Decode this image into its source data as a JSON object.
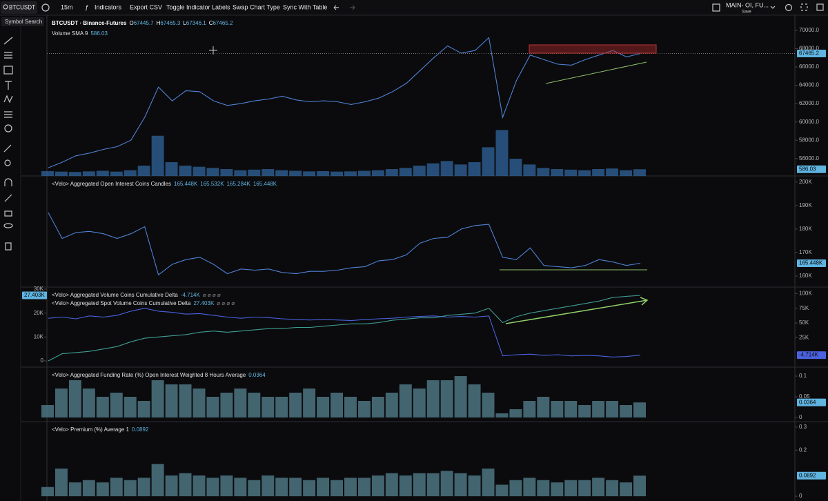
{
  "toolbar": {
    "symbol": "BTCUSDT",
    "interval": "15m",
    "buttons": [
      "Indicators",
      "Export CSV",
      "Toggle Indicator Labels",
      "Swap Chart Type",
      "Sync With Table"
    ],
    "layout": "MAIN- OI, FU...",
    "save": "Save",
    "tooltip": "Symbol Search"
  },
  "chart_data": [
    {
      "type": "line",
      "title": "BTCUSDT · Binance-Futures",
      "ohlc": {
        "labels": [
          "O",
          "H",
          "L",
          "C"
        ],
        "values": [
          67445.7,
          67465.3,
          67346.1,
          67465.2
        ]
      },
      "series": [
        {
          "color": "#4f82d4",
          "values": [
            55000,
            55600,
            56300,
            56600,
            57000,
            57300,
            58000,
            60500,
            63800,
            62300,
            63400,
            63300,
            62300,
            61800,
            62000,
            62300,
            62500,
            62800,
            62400,
            62200,
            62300,
            62200,
            61900,
            62200,
            62600,
            63300,
            64200,
            65600,
            67000,
            68300,
            67500,
            67800,
            69200,
            60500,
            64500,
            67300,
            66800,
            66300,
            66200,
            66800,
            67300,
            67800,
            67100,
            67465.2
          ]
        }
      ],
      "volume": {
        "name": "Volume SMA 9",
        "value": 586.03,
        "color": "#2c5a8c",
        "ylim": [
          0,
          14000
        ],
        "values": [
          420,
          380,
          350,
          400,
          450,
          380,
          500,
          900,
          3500,
          1200,
          900,
          800,
          700,
          600,
          500,
          550,
          600,
          500,
          450,
          400,
          420,
          380,
          400,
          450,
          500,
          600,
          700,
          900,
          1100,
          1300,
          1000,
          1200,
          2500,
          4000,
          1500,
          1000,
          700,
          600,
          550,
          500,
          600,
          650,
          500,
          586
        ]
      },
      "ylim": [
        54100,
        71650
      ],
      "yticks": [
        {
          "value": 56000,
          "label": "56000.0"
        },
        {
          "value": 58000,
          "label": "58000.0"
        },
        {
          "value": 60000,
          "label": "60000.0"
        },
        {
          "value": 62000,
          "label": "62000.0"
        },
        {
          "value": 64000,
          "label": "64000.0"
        },
        {
          "value": 66000,
          "label": "66000.0"
        },
        {
          "value": 68000,
          "label": "68000.0"
        },
        {
          "value": 70000,
          "label": "70000.0"
        }
      ]
    },
    {
      "type": "line",
      "title": "<Velo> Aggregated Open Interest Coins Candles",
      "ohlc": {
        "values": [
          165448,
          165532,
          165284,
          165448
        ],
        "value_labels": [
          "165.448K",
          "165.532K",
          "165.284K",
          "165.448K"
        ]
      },
      "series": [
        {
          "color": "#4f82d4",
          "values": [
            187000,
            176000,
            178500,
            179000,
            178000,
            176000,
            178000,
            181000,
            160500,
            165000,
            167000,
            168000,
            165000,
            161000,
            163000,
            162500,
            163000,
            161500,
            161000,
            162000,
            162000,
            162500,
            163500,
            164000,
            166500,
            167000,
            169000,
            174000,
            176000,
            176500,
            180000,
            181500,
            182000,
            168000,
            167000,
            172000,
            164500,
            164000,
            163500,
            164500,
            167000,
            166000,
            164500,
            165448
          ]
        }
      ],
      "ylim": [
        155300,
        202600
      ],
      "yticks": [
        {
          "value": 160000,
          "label": "160K"
        },
        {
          "value": 170000,
          "label": "170K"
        },
        {
          "value": 180000,
          "label": "180K"
        },
        {
          "value": 190000,
          "label": "190K"
        },
        {
          "value": 200000,
          "label": "200K"
        }
      ]
    },
    {
      "type": "line",
      "series": [
        {
          "name": "<Velo> Aggregated Volume Coins Cumulative Delta",
          "value": -4714,
          "value_label": "-4.714K",
          "flags": "⌀ ⌀ ⌀ ⌀",
          "color": "#4a62e0",
          "axis": "y2",
          "values": [
            58000,
            60000,
            57000,
            62000,
            60000,
            63000,
            70000,
            75000,
            70000,
            68000,
            65000,
            66000,
            63000,
            60000,
            58000,
            60000,
            59000,
            57000,
            56000,
            55000,
            56000,
            55000,
            54000,
            56000,
            57000,
            58000,
            60000,
            61000,
            62000,
            60000,
            61000,
            60000,
            62000,
            -6000,
            -4000,
            -3000,
            -5000,
            -4000,
            -6000,
            -5000,
            -6000,
            -8000,
            -7000,
            -4714
          ]
        },
        {
          "name": "<Velo> Aggregated Spot Volume Coins Cumulative Delta",
          "value": 27403,
          "value_label": "27.403K",
          "flags": "⌀ ⌀ ⌀ ⌀",
          "color": "#3f9d93",
          "values": [
            0,
            3000,
            3500,
            4000,
            5000,
            6000,
            8000,
            9500,
            10000,
            10500,
            11000,
            12000,
            12500,
            12000,
            12500,
            13000,
            13500,
            13500,
            14000,
            14000,
            14500,
            15000,
            15500,
            15500,
            16000,
            17000,
            17500,
            18000,
            18000,
            19000,
            19500,
            20000,
            22000,
            16000,
            18500,
            20000,
            21000,
            22000,
            23000,
            24000,
            25000,
            26500,
            27000,
            27403
          ]
        }
      ],
      "ylim": [
        -2600,
        30870
      ],
      "yticks": [
        0,
        {
          "value": 10000,
          "label": "10K"
        },
        {
          "value": 20000,
          "label": "20K"
        },
        {
          "value": 30000,
          "label": "30K"
        }
      ],
      "y2lim": [
        -25100,
        111000
      ],
      "y2ticks": [
        {
          "value": 25000,
          "label": "25K"
        },
        {
          "value": 50000,
          "label": "50K"
        },
        {
          "value": 75000,
          "label": "75K"
        },
        {
          "value": 100000,
          "label": "100K"
        }
      ]
    },
    {
      "type": "bar",
      "title": "<Velo> Aggregated Funding Rate (%) Open Interest Weighted 8 Hours Average",
      "value": 0.0364,
      "color": "#4d7583",
      "values": [
        0.03,
        0.07,
        0.09,
        0.07,
        0.05,
        0.06,
        0.05,
        0.04,
        0.09,
        0.08,
        0.08,
        0.07,
        0.05,
        0.06,
        0.07,
        0.06,
        0.05,
        0.05,
        0.06,
        0.07,
        0.05,
        0.06,
        0.05,
        0.04,
        0.05,
        0.06,
        0.08,
        0.07,
        0.09,
        0.09,
        0.1,
        0.08,
        0.06,
        0.01,
        0.02,
        0.04,
        0.05,
        0.04,
        0.04,
        0.03,
        0.04,
        0.04,
        0.03,
        0.0364
      ],
      "ylim": [
        -0.01,
        0.1217
      ],
      "yticks": [
        0,
        0.05,
        0.1
      ]
    },
    {
      "type": "bar",
      "title": "<Velo> Premium (%) Average 1",
      "value": 0.0892,
      "color": "#4d7583",
      "values": [
        0.04,
        0.12,
        0.06,
        0.07,
        0.06,
        0.08,
        0.07,
        0.08,
        0.14,
        0.09,
        0.1,
        0.09,
        0.08,
        0.09,
        0.08,
        0.07,
        0.09,
        0.08,
        0.08,
        0.07,
        0.08,
        0.07,
        0.08,
        0.08,
        0.09,
        0.1,
        0.09,
        0.1,
        0.1,
        0.11,
        0.1,
        0.09,
        0.12,
        0.05,
        0.07,
        0.08,
        0.07,
        0.06,
        0.07,
        0.07,
        0.08,
        0.07,
        0.06,
        0.0892
      ],
      "ylim": [
        -0.0206,
        0.3235
      ],
      "yticks": [
        0,
        0.2,
        0.3
      ]
    }
  ]
}
